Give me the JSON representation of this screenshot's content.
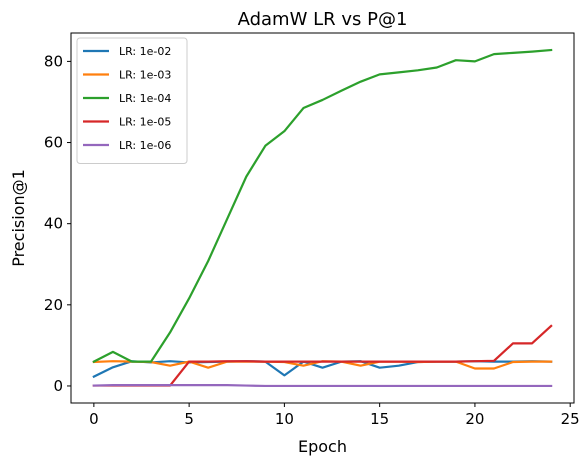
{
  "chart_data": {
    "type": "line",
    "title": "AdamW LR vs P@1",
    "xlabel": "Epoch",
    "ylabel": "Precision@1",
    "xlim": [
      -1.2,
      25.2
    ],
    "ylim": [
      -4.2,
      87
    ],
    "xticks": [
      0,
      5,
      10,
      15,
      20,
      25
    ],
    "yticks": [
      0,
      20,
      40,
      60,
      80
    ],
    "xtick_labels": [
      "0",
      "5",
      "10",
      "15",
      "20",
      "25"
    ],
    "ytick_labels": [
      "0",
      "20",
      "40",
      "60",
      "80"
    ],
    "grid": false,
    "legend_position": "top-left",
    "x": [
      0,
      1,
      2,
      3,
      4,
      5,
      6,
      7,
      8,
      9,
      10,
      11,
      12,
      13,
      14,
      15,
      16,
      17,
      18,
      19,
      20,
      21,
      22,
      23,
      24
    ],
    "series": [
      {
        "name": "LR: 1e-02",
        "color": "#1f77b4",
        "values": [
          2.3,
          4.6,
          6.1,
          5.8,
          6.1,
          5.8,
          5.9,
          6.0,
          6.1,
          6.0,
          2.6,
          6.0,
          4.5,
          6.0,
          6.1,
          4.5,
          5.0,
          5.9,
          6.0,
          6.0,
          6.1,
          6.0,
          6.0,
          6.1,
          6.0
        ]
      },
      {
        "name": "LR: 1e-03",
        "color": "#ff7f0e",
        "values": [
          5.9,
          6.1,
          6.0,
          5.9,
          5.0,
          6.0,
          4.5,
          6.0,
          6.0,
          6.0,
          5.9,
          5.0,
          6.1,
          6.0,
          5.0,
          6.0,
          6.0,
          5.9,
          6.0,
          6.0,
          4.3,
          4.3,
          5.9,
          6.0,
          6.0
        ]
      },
      {
        "name": "LR: 1e-04",
        "color": "#2ca02c",
        "values": [
          6.0,
          8.4,
          6.0,
          6.0,
          13.2,
          21.6,
          30.8,
          41.2,
          51.6,
          59.2,
          62.8,
          68.5,
          70.5,
          72.8,
          75.0,
          76.8,
          77.3,
          77.8,
          78.5,
          80.3,
          80.0,
          81.8,
          82.1,
          82.4,
          82.8
        ]
      },
      {
        "name": "LR: 1e-05",
        "color": "#d62728",
        "values": [
          0.1,
          0.1,
          0.1,
          0.1,
          0.1,
          6.0,
          6.0,
          6.1,
          6.1,
          6.0,
          6.0,
          6.0,
          6.0,
          6.0,
          6.0,
          6.0,
          6.0,
          6.0,
          6.0,
          6.0,
          6.1,
          6.2,
          10.5,
          10.5,
          14.8
        ]
      },
      {
        "name": "LR: 1e-06",
        "color": "#9467bd",
        "values": [
          0.1,
          0.2,
          0.2,
          0.2,
          0.2,
          0.2,
          0.2,
          0.2,
          0.1,
          0.0,
          0.0,
          0.0,
          0.0,
          0.0,
          0.0,
          0.0,
          0.0,
          0.0,
          0.0,
          0.0,
          0.0,
          0.0,
          0.0,
          0.0,
          0.0
        ]
      }
    ]
  }
}
